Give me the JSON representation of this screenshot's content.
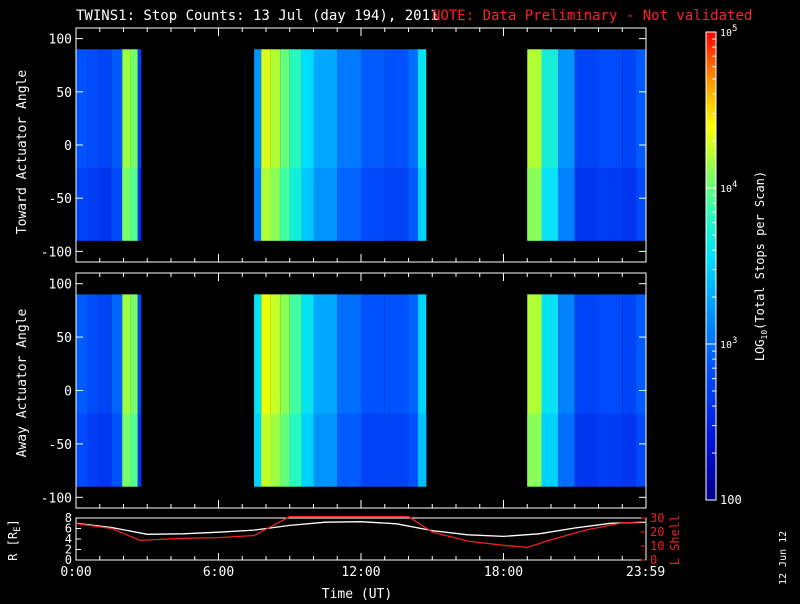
{
  "title": "TWINS1: Stop Counts: 13 Jul (day 194), 2011",
  "note": "NOTE: Data Preliminary - Not validated",
  "stamp": "12 Jun 12",
  "colors": {
    "background": "#000000",
    "axes": "#ffffff",
    "note": "#ff2020",
    "lshell": "#ee2020"
  },
  "chart_data": [
    {
      "type": "heatmap",
      "panel": "toward",
      "ylabel": "Toward Actuator Angle",
      "ylim": [
        -110,
        110
      ],
      "yticks": [
        100,
        50,
        0,
        -50,
        -100
      ],
      "xlim": [
        0,
        24
      ],
      "data_y_range": [
        -90,
        90
      ],
      "colorscale": "log10",
      "data_intervals_ut_hours": [
        [
          0,
          2.75
        ],
        [
          7.5,
          14.75
        ],
        [
          19.0,
          24.0
        ]
      ],
      "columns_log10": [
        {
          "t": 0.0,
          "v": 2.85
        },
        {
          "t": 0.5,
          "v": 2.8
        },
        {
          "t": 1.0,
          "v": 2.75
        },
        {
          "t": 1.5,
          "v": 2.9
        },
        {
          "t": 1.95,
          "v": 4.15
        },
        {
          "t": 2.3,
          "v": 4.05
        },
        {
          "t": 2.6,
          "v": 2.7
        },
        {
          "t": 7.5,
          "v": 3.2
        },
        {
          "t": 7.8,
          "v": 4.3
        },
        {
          "t": 8.2,
          "v": 4.2
        },
        {
          "t": 8.6,
          "v": 4.0
        },
        {
          "t": 9.0,
          "v": 3.8
        },
        {
          "t": 9.5,
          "v": 3.55
        },
        {
          "t": 10.0,
          "v": 3.3
        },
        {
          "t": 11.0,
          "v": 3.05
        },
        {
          "t": 12.0,
          "v": 2.9
        },
        {
          "t": 13.0,
          "v": 2.85
        },
        {
          "t": 14.0,
          "v": 3.0
        },
        {
          "t": 14.4,
          "v": 3.6
        },
        {
          "t": 19.0,
          "v": 4.2
        },
        {
          "t": 19.6,
          "v": 3.7
        },
        {
          "t": 20.3,
          "v": 3.2
        },
        {
          "t": 21.0,
          "v": 2.75
        },
        {
          "t": 22.0,
          "v": 2.8
        },
        {
          "t": 23.0,
          "v": 2.75
        },
        {
          "t": 23.6,
          "v": 2.9
        }
      ]
    },
    {
      "type": "heatmap",
      "panel": "away",
      "ylabel": "Away Actuator Angle",
      "ylim": [
        -110,
        110
      ],
      "yticks": [
        100,
        50,
        0,
        -50,
        -100
      ],
      "xlim": [
        0,
        24
      ],
      "data_y_range": [
        -90,
        90
      ],
      "colorscale": "log10",
      "data_intervals_ut_hours": [
        [
          0,
          2.75
        ],
        [
          7.5,
          14.75
        ],
        [
          19.0,
          24.0
        ]
      ],
      "columns_log10": [
        {
          "t": 0.0,
          "v": 2.9
        },
        {
          "t": 0.5,
          "v": 2.8
        },
        {
          "t": 1.0,
          "v": 2.75
        },
        {
          "t": 1.5,
          "v": 2.95
        },
        {
          "t": 1.95,
          "v": 4.15
        },
        {
          "t": 2.3,
          "v": 4.05
        },
        {
          "t": 2.6,
          "v": 2.75
        },
        {
          "t": 7.5,
          "v": 3.6
        },
        {
          "t": 7.8,
          "v": 4.35
        },
        {
          "t": 8.2,
          "v": 4.25
        },
        {
          "t": 8.6,
          "v": 4.1
        },
        {
          "t": 9.0,
          "v": 3.9
        },
        {
          "t": 9.5,
          "v": 3.6
        },
        {
          "t": 10.0,
          "v": 3.3
        },
        {
          "t": 11.0,
          "v": 3.0
        },
        {
          "t": 12.0,
          "v": 2.85
        },
        {
          "t": 13.0,
          "v": 2.85
        },
        {
          "t": 14.0,
          "v": 2.95
        },
        {
          "t": 14.4,
          "v": 3.5
        },
        {
          "t": 19.0,
          "v": 4.2
        },
        {
          "t": 19.6,
          "v": 3.6
        },
        {
          "t": 20.3,
          "v": 3.1
        },
        {
          "t": 21.0,
          "v": 2.75
        },
        {
          "t": 22.0,
          "v": 2.8
        },
        {
          "t": 23.0,
          "v": 2.75
        },
        {
          "t": 23.6,
          "v": 2.9
        }
      ]
    },
    {
      "type": "line",
      "panel": "ephemeris",
      "xlabel": "Time (UT)",
      "xlim": [
        0,
        24
      ],
      "xtick_labels": [
        {
          "t": 0,
          "label": "0:00"
        },
        {
          "t": 6,
          "label": "6:00"
        },
        {
          "t": 12,
          "label": "12:00"
        },
        {
          "t": 18,
          "label": "18:00"
        },
        {
          "t": 23.983,
          "label": "23:59"
        }
      ],
      "left_axis": {
        "label": "R [R",
        "sub": "E",
        "close": "]",
        "ylim": [
          0,
          8
        ],
        "ticks": [
          8,
          6,
          4,
          2,
          0
        ]
      },
      "right_axis": {
        "label": "L Shell",
        "ylim": [
          0,
          30
        ],
        "ticks": [
          30,
          20,
          10,
          0
        ]
      },
      "series": [
        {
          "axis": "left",
          "color": "#ffffff",
          "t": [
            0,
            1.5,
            3,
            4.5,
            6,
            7.5,
            9,
            10.5,
            12,
            13.5,
            15,
            16.5,
            18,
            19.5,
            21,
            22.5,
            24
          ],
          "values": [
            7.0,
            6.2,
            4.9,
            5.0,
            5.3,
            5.7,
            6.6,
            7.2,
            7.3,
            6.9,
            5.6,
            4.8,
            4.5,
            5.0,
            6.1,
            7.0,
            7.2
          ]
        },
        {
          "axis": "right",
          "color": "#ee2020",
          "t": [
            0,
            1.5,
            2.7,
            4.5,
            6,
            7.5,
            9,
            10,
            11,
            12,
            13,
            14,
            15,
            16.5,
            18,
            19,
            20,
            21.5,
            23,
            24
          ],
          "values": [
            26.0,
            22.5,
            14.0,
            15.5,
            16.0,
            17.5,
            31.0,
            31.0,
            31.0,
            31.0,
            31.0,
            31.0,
            20.0,
            13.5,
            10.5,
            9.0,
            14.5,
            21.5,
            26.5,
            27.5
          ]
        }
      ]
    },
    {
      "type": "colorbar",
      "panel": "colorbar",
      "label": "LOG10(Total Stops per Scan)",
      "scale": "log10",
      "range_log10": [
        2,
        5
      ],
      "tick_labels": [
        {
          "value": 5,
          "base": "10",
          "exp": "5"
        },
        {
          "value": 4,
          "base": "10",
          "exp": "4"
        },
        {
          "value": 3,
          "base": "10",
          "exp": "3"
        },
        {
          "value": 2,
          "base": "100",
          "exp": ""
        }
      ]
    }
  ]
}
